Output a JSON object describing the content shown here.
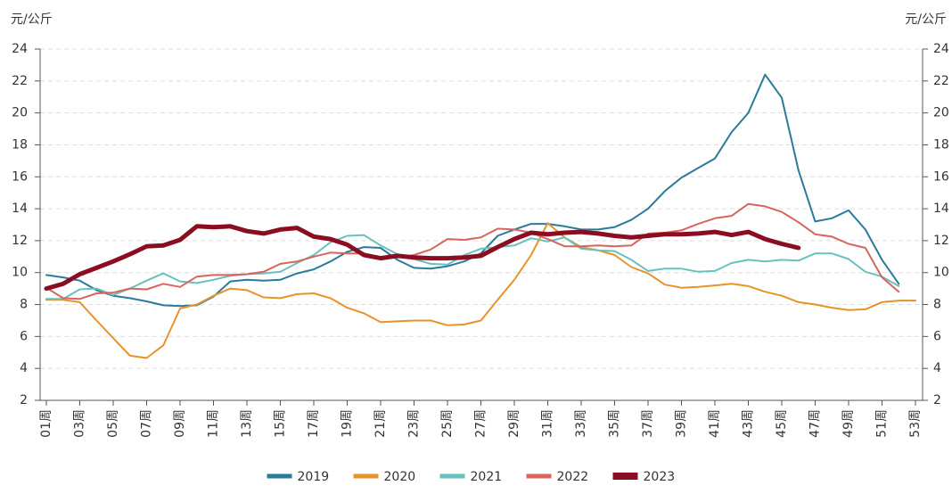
{
  "chart_data": {
    "type": "line",
    "ylabel": "元/公斤",
    "y2label": "元/公斤",
    "categories": [
      "01周",
      null,
      "03周",
      null,
      "05周",
      null,
      "07周",
      null,
      "09周",
      null,
      "11周",
      null,
      "13周",
      null,
      "15周",
      null,
      "17周",
      null,
      "19周",
      null,
      "21周",
      null,
      "23周",
      null,
      "25周",
      null,
      "27周",
      null,
      "29周",
      null,
      "31周",
      null,
      "33周",
      null,
      "35周",
      null,
      "37周",
      null,
      "39周",
      null,
      "41周",
      null,
      "43周",
      null,
      "45周",
      null,
      "47周",
      null,
      "49周",
      null,
      "51周",
      null,
      "53周"
    ],
    "ylim": [
      2,
      24
    ],
    "yticks": [
      2,
      4,
      6,
      8,
      10,
      12,
      14,
      16,
      18,
      20,
      22,
      24
    ],
    "y2lim": [
      2,
      24
    ],
    "y2ticks": [
      2,
      4,
      6,
      8,
      10,
      12,
      14,
      16,
      18,
      20,
      22,
      24
    ],
    "grid": true,
    "legend": "bottom",
    "series": [
      {
        "name": "2019",
        "color": "#2a7a9c",
        "width": 2,
        "values": [
          9.85,
          9.7,
          9.5,
          8.9,
          8.55,
          8.4,
          8.2,
          7.95,
          7.9,
          7.95,
          8.5,
          9.45,
          9.55,
          9.5,
          9.55,
          9.95,
          10.2,
          10.7,
          11.3,
          11.6,
          11.55,
          10.8,
          10.3,
          10.25,
          10.4,
          10.7,
          11.2,
          12.3,
          12.7,
          13.05,
          13.05,
          12.9,
          12.7,
          12.7,
          12.85,
          13.3,
          14.0,
          15.1,
          15.95,
          16.55,
          17.15,
          18.8,
          20.0,
          22.4,
          20.95,
          16.4,
          13.2,
          13.4,
          13.9,
          12.7,
          10.8,
          9.3,
          null
        ]
      },
      {
        "name": "2020",
        "color": "#e8922a",
        "width": 2,
        "values": [
          8.3,
          8.3,
          8.15,
          7.0,
          5.9,
          4.8,
          4.65,
          5.45,
          7.75,
          8.0,
          8.55,
          9.0,
          8.9,
          8.45,
          8.4,
          8.65,
          8.7,
          8.4,
          7.8,
          7.45,
          6.9,
          6.95,
          7.0,
          7.0,
          6.7,
          6.75,
          7.0,
          8.3,
          9.55,
          11.1,
          13.1,
          12.2,
          11.6,
          11.4,
          11.1,
          10.35,
          9.95,
          9.25,
          9.05,
          9.1,
          9.2,
          9.3,
          9.15,
          8.8,
          8.55,
          8.15,
          8.0,
          7.8,
          7.65,
          7.7,
          8.15,
          8.25,
          8.25
        ]
      },
      {
        "name": "2021",
        "color": "#67c1bf",
        "width": 2,
        "values": [
          8.35,
          8.35,
          8.95,
          9.0,
          8.6,
          9.0,
          9.5,
          9.95,
          9.45,
          9.35,
          9.55,
          9.8,
          9.9,
          9.95,
          10.05,
          10.6,
          11.1,
          11.9,
          12.3,
          12.35,
          11.7,
          11.15,
          10.85,
          10.55,
          10.5,
          11.1,
          11.5,
          11.6,
          11.7,
          12.15,
          11.95,
          12.2,
          11.5,
          11.4,
          11.35,
          10.8,
          10.1,
          10.25,
          10.25,
          10.05,
          10.1,
          10.6,
          10.8,
          10.7,
          10.8,
          10.75,
          11.2,
          11.2,
          10.85,
          10.05,
          9.75,
          9.15,
          null
        ]
      },
      {
        "name": "2022",
        "color": "#d9645e",
        "width": 2,
        "values": [
          9.05,
          8.4,
          8.35,
          8.7,
          8.75,
          9.0,
          8.95,
          9.3,
          9.1,
          9.75,
          9.85,
          9.85,
          9.9,
          10.05,
          10.55,
          10.7,
          11.0,
          11.25,
          11.2,
          11.2,
          10.9,
          10.95,
          11.1,
          11.45,
          12.1,
          12.05,
          12.2,
          12.75,
          12.7,
          12.5,
          12.1,
          11.65,
          11.65,
          11.7,
          11.65,
          11.7,
          12.45,
          12.5,
          12.65,
          13.05,
          13.4,
          13.55,
          14.3,
          14.15,
          13.8,
          13.15,
          12.4,
          12.25,
          11.8,
          11.55,
          9.7,
          8.8,
          null
        ]
      },
      {
        "name": "2023",
        "color": "#8b0d22",
        "width": 5,
        "values": [
          9.0,
          9.3,
          9.9,
          10.3,
          10.7,
          11.15,
          11.65,
          11.7,
          12.05,
          12.9,
          12.85,
          12.9,
          12.6,
          12.45,
          12.7,
          12.8,
          12.25,
          12.1,
          11.75,
          11.1,
          10.9,
          11.05,
          10.95,
          10.9,
          10.9,
          10.95,
          11.05,
          11.6,
          12.1,
          12.5,
          12.4,
          12.5,
          12.55,
          12.45,
          12.3,
          12.2,
          12.3,
          12.4,
          12.4,
          12.45,
          12.55,
          12.35,
          12.55,
          12.1,
          11.8,
          11.55,
          null,
          null,
          null,
          null,
          null,
          null,
          null
        ]
      }
    ]
  }
}
